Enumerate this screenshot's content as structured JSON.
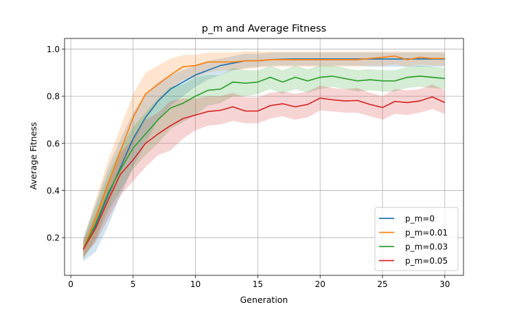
{
  "chart_data": {
    "type": "line",
    "title": "p_m and Average Fitness",
    "xlabel": "Generation",
    "ylabel": "Average Fitness",
    "xlim": [
      -0.5,
      31.5
    ],
    "ylim": [
      0.04,
      1.045
    ],
    "xticks": [
      0,
      5,
      10,
      15,
      20,
      25,
      30
    ],
    "yticks": [
      0.2,
      0.4,
      0.6,
      0.8,
      1.0
    ],
    "xtick_labels": [
      "0",
      "5",
      "10",
      "15",
      "20",
      "25",
      "30"
    ],
    "ytick_labels": [
      "0.2",
      "0.4",
      "0.6",
      "0.8",
      "1.0"
    ],
    "grid": true,
    "legend_position": "bottom-right",
    "x": [
      1,
      2,
      3,
      4,
      5,
      6,
      7,
      8,
      9,
      10,
      11,
      12,
      13,
      14,
      15,
      16,
      17,
      18,
      19,
      20,
      21,
      22,
      23,
      24,
      25,
      26,
      27,
      28,
      29,
      30
    ],
    "series": [
      {
        "name": "p_m=0",
        "color": "#1f77b4",
        "values": [
          0.15,
          0.25,
          0.38,
          0.5,
          0.62,
          0.71,
          0.78,
          0.83,
          0.86,
          0.89,
          0.91,
          0.93,
          0.94,
          0.95,
          0.95,
          0.955,
          0.957,
          0.958,
          0.958,
          0.958,
          0.958,
          0.958,
          0.958,
          0.958,
          0.958,
          0.958,
          0.958,
          0.958,
          0.958,
          0.958
        ],
        "lower": [
          0.1,
          0.14,
          0.25,
          0.38,
          0.5,
          0.6,
          0.7,
          0.76,
          0.8,
          0.84,
          0.87,
          0.89,
          0.91,
          0.92,
          0.925,
          0.93,
          0.93,
          0.93,
          0.93,
          0.93,
          0.93,
          0.93,
          0.93,
          0.925,
          0.925,
          0.925,
          0.925,
          0.925,
          0.925,
          0.925
        ],
        "upper": [
          0.2,
          0.35,
          0.5,
          0.62,
          0.73,
          0.81,
          0.86,
          0.89,
          0.91,
          0.93,
          0.95,
          0.96,
          0.97,
          0.98,
          0.98,
          0.985,
          0.985,
          0.985,
          0.985,
          0.985,
          0.985,
          0.985,
          0.985,
          0.985,
          0.985,
          0.985,
          0.985,
          0.985,
          0.985,
          0.985
        ]
      },
      {
        "name": "p_m=0.01",
        "color": "#ff7f0e",
        "values": [
          0.15,
          0.28,
          0.43,
          0.57,
          0.71,
          0.81,
          0.85,
          0.89,
          0.925,
          0.93,
          0.945,
          0.945,
          0.945,
          0.95,
          0.95,
          0.955,
          0.955,
          0.955,
          0.955,
          0.955,
          0.955,
          0.955,
          0.955,
          0.96,
          0.965,
          0.97,
          0.955,
          0.965,
          0.96,
          0.96
        ],
        "lower": [
          0.11,
          0.2,
          0.33,
          0.47,
          0.6,
          0.7,
          0.77,
          0.83,
          0.87,
          0.88,
          0.9,
          0.91,
          0.91,
          0.915,
          0.92,
          0.925,
          0.925,
          0.925,
          0.925,
          0.925,
          0.925,
          0.925,
          0.925,
          0.93,
          0.93,
          0.935,
          0.925,
          0.935,
          0.93,
          0.93
        ],
        "upper": [
          0.19,
          0.36,
          0.53,
          0.67,
          0.81,
          0.9,
          0.93,
          0.96,
          0.975,
          0.975,
          0.985,
          0.985,
          0.985,
          0.99,
          0.99,
          0.99,
          0.99,
          0.99,
          0.99,
          0.99,
          0.99,
          0.99,
          0.99,
          0.99,
          0.99,
          0.99,
          0.99,
          0.99,
          0.99,
          0.99
        ]
      },
      {
        "name": "p_m=0.03",
        "color": "#2ca02c",
        "values": [
          0.15,
          0.26,
          0.39,
          0.49,
          0.58,
          0.64,
          0.7,
          0.75,
          0.77,
          0.8,
          0.825,
          0.83,
          0.86,
          0.855,
          0.86,
          0.88,
          0.86,
          0.88,
          0.865,
          0.88,
          0.885,
          0.875,
          0.865,
          0.87,
          0.865,
          0.865,
          0.88,
          0.885,
          0.88,
          0.875
        ],
        "lower": [
          0.11,
          0.19,
          0.31,
          0.4,
          0.49,
          0.55,
          0.6,
          0.66,
          0.69,
          0.72,
          0.76,
          0.77,
          0.8,
          0.8,
          0.81,
          0.83,
          0.81,
          0.83,
          0.815,
          0.83,
          0.84,
          0.83,
          0.82,
          0.825,
          0.82,
          0.82,
          0.835,
          0.84,
          0.835,
          0.83
        ],
        "upper": [
          0.19,
          0.33,
          0.47,
          0.58,
          0.67,
          0.73,
          0.79,
          0.84,
          0.85,
          0.88,
          0.89,
          0.89,
          0.92,
          0.91,
          0.91,
          0.93,
          0.91,
          0.93,
          0.915,
          0.93,
          0.93,
          0.92,
          0.91,
          0.915,
          0.91,
          0.91,
          0.925,
          0.93,
          0.925,
          0.92
        ]
      },
      {
        "name": "p_m=0.05",
        "color": "#d62728",
        "values": [
          0.15,
          0.24,
          0.36,
          0.47,
          0.53,
          0.6,
          0.64,
          0.675,
          0.705,
          0.72,
          0.735,
          0.74,
          0.755,
          0.737,
          0.737,
          0.76,
          0.768,
          0.755,
          0.765,
          0.792,
          0.785,
          0.78,
          0.782,
          0.765,
          0.752,
          0.778,
          0.773,
          0.78,
          0.797,
          0.773
        ],
        "lower": [
          0.12,
          0.18,
          0.28,
          0.38,
          0.44,
          0.5,
          0.55,
          0.57,
          0.62,
          0.655,
          0.675,
          0.68,
          0.695,
          0.685,
          0.685,
          0.705,
          0.715,
          0.7,
          0.71,
          0.74,
          0.735,
          0.73,
          0.73,
          0.715,
          0.7,
          0.725,
          0.72,
          0.73,
          0.745,
          0.725
        ],
        "upper": [
          0.18,
          0.3,
          0.44,
          0.56,
          0.62,
          0.7,
          0.73,
          0.78,
          0.79,
          0.79,
          0.8,
          0.8,
          0.815,
          0.795,
          0.795,
          0.815,
          0.82,
          0.81,
          0.82,
          0.845,
          0.835,
          0.83,
          0.835,
          0.815,
          0.8,
          0.83,
          0.825,
          0.83,
          0.85,
          0.825
        ]
      }
    ]
  }
}
